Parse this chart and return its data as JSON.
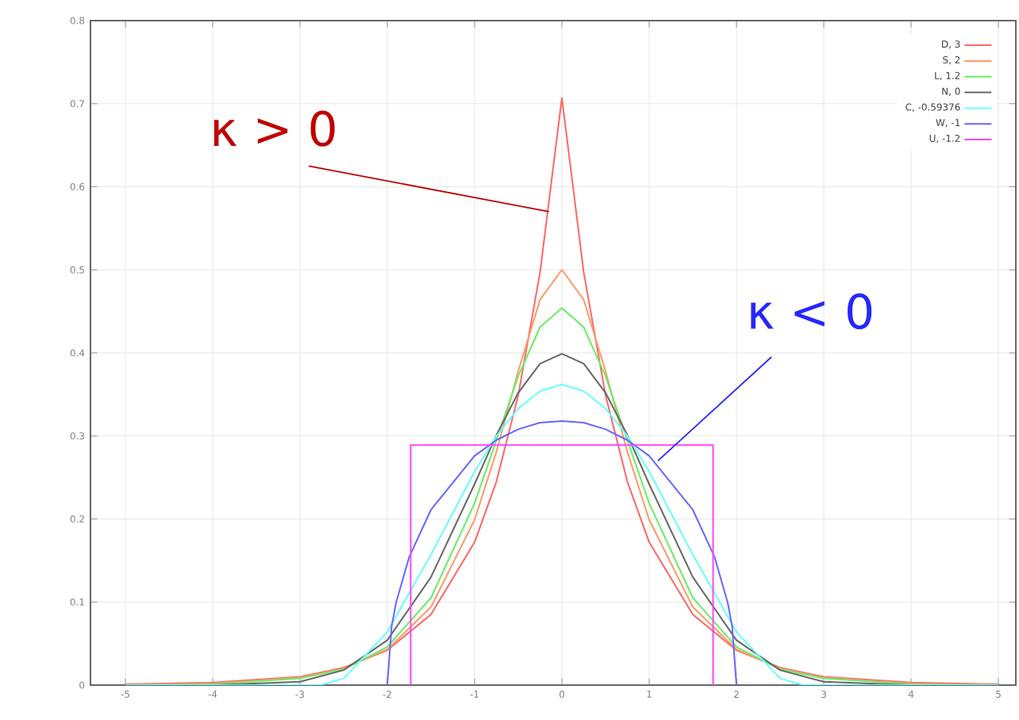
{
  "chart_data": {
    "type": "line",
    "xlim": [
      -5.4,
      5.2
    ],
    "ylim": [
      0,
      0.8
    ],
    "xticks": [
      -5,
      -4,
      -3,
      -2,
      -1,
      0,
      1,
      2,
      3,
      4,
      5
    ],
    "yticks": [
      0,
      0.1,
      0.2,
      0.3,
      0.4,
      0.5,
      0.6,
      0.7,
      0.8
    ],
    "grid": true,
    "legend": "top right",
    "marker": "none",
    "line_style": "solid",
    "annotations": [
      {
        "text": "κ > 0",
        "x": -0.15,
        "y": 0.57
      },
      {
        "text": "κ < 0",
        "x": 1.1,
        "y": 0.27
      }
    ],
    "series": [
      {
        "name": "D, 3",
        "color": "#ff6666",
        "x": [
          -5,
          -4,
          -3,
          -2.5,
          -2,
          -1.5,
          -1,
          -0.75,
          -0.5,
          -0.25,
          0,
          0.25,
          0.5,
          0.75,
          1,
          1.5,
          2,
          2.5,
          3,
          4,
          5
        ],
        "values": [
          0.001,
          0.003,
          0.01,
          0.021,
          0.042,
          0.085,
          0.172,
          0.245,
          0.349,
          0.497,
          0.707,
          0.497,
          0.349,
          0.245,
          0.172,
          0.085,
          0.042,
          0.021,
          0.01,
          0.003,
          0.001
        ]
      },
      {
        "name": "S, 2",
        "color": "#ff9966",
        "x": [
          -5,
          -4,
          -3,
          -2.5,
          -2,
          -1.5,
          -1,
          -0.75,
          -0.5,
          -0.25,
          0,
          0.25,
          0.5,
          0.75,
          1,
          1.5,
          2,
          2.5,
          3,
          4,
          5
        ],
        "values": [
          0.0,
          0.002,
          0.009,
          0.02,
          0.043,
          0.094,
          0.199,
          0.281,
          0.378,
          0.464,
          0.5,
          0.464,
          0.378,
          0.281,
          0.199,
          0.094,
          0.043,
          0.02,
          0.009,
          0.002,
          0.0
        ]
      },
      {
        "name": "L, 1.2",
        "color": "#66ee66",
        "x": [
          -5,
          -4,
          -3,
          -2.5,
          -2,
          -1.5,
          -1,
          -0.75,
          -0.5,
          -0.25,
          0,
          0.25,
          0.5,
          0.75,
          1,
          1.5,
          2,
          2.5,
          3,
          4,
          5
        ],
        "values": [
          0.0,
          0.001,
          0.008,
          0.019,
          0.046,
          0.105,
          0.219,
          0.295,
          0.372,
          0.431,
          0.454,
          0.431,
          0.372,
          0.295,
          0.219,
          0.105,
          0.046,
          0.019,
          0.008,
          0.001,
          0.0
        ]
      },
      {
        "name": "N, 0",
        "color": "#666666",
        "x": [
          -5,
          -4,
          -3,
          -2.5,
          -2,
          -1.5,
          -1,
          -0.75,
          -0.5,
          -0.25,
          0,
          0.25,
          0.5,
          0.75,
          1,
          1.5,
          2,
          2.5,
          3,
          4,
          5
        ],
        "values": [
          0.0,
          0.0,
          0.004,
          0.018,
          0.054,
          0.13,
          0.242,
          0.301,
          0.352,
          0.387,
          0.399,
          0.387,
          0.352,
          0.301,
          0.242,
          0.13,
          0.054,
          0.018,
          0.004,
          0.0,
          0.0
        ]
      },
      {
        "name": "C, -0.59376",
        "color": "#66ffff",
        "x": [
          -5,
          -4,
          -3,
          -2.766,
          -2.5,
          -2,
          -1.5,
          -1,
          -0.75,
          -0.5,
          -0.25,
          0,
          0.25,
          0.5,
          0.75,
          1,
          1.5,
          2,
          2.5,
          2.766,
          3,
          4,
          5
        ],
        "values": [
          0,
          0,
          0,
          0,
          0.008,
          0.064,
          0.157,
          0.257,
          0.3,
          0.333,
          0.354,
          0.362,
          0.354,
          0.333,
          0.3,
          0.257,
          0.157,
          0.064,
          0.008,
          0,
          0,
          0,
          0
        ]
      },
      {
        "name": "W, -1",
        "color": "#6666ff",
        "x": [
          -2,
          -1.95,
          -1.9,
          -1.75,
          -1.5,
          -1,
          -0.75,
          -0.5,
          -0.25,
          0,
          0.25,
          0.5,
          0.75,
          1,
          1.5,
          1.75,
          1.9,
          1.95,
          2
        ],
        "values": [
          0,
          0.071,
          0.099,
          0.154,
          0.211,
          0.276,
          0.295,
          0.308,
          0.316,
          0.318,
          0.316,
          0.308,
          0.295,
          0.276,
          0.211,
          0.154,
          0.099,
          0.071,
          0
        ]
      },
      {
        "name": "U, -1.2",
        "color": "#ff44ff",
        "x": [
          -1.732,
          -1.732,
          1.732,
          1.732
        ],
        "values": [
          0,
          0.289,
          0.289,
          0
        ]
      }
    ]
  }
}
